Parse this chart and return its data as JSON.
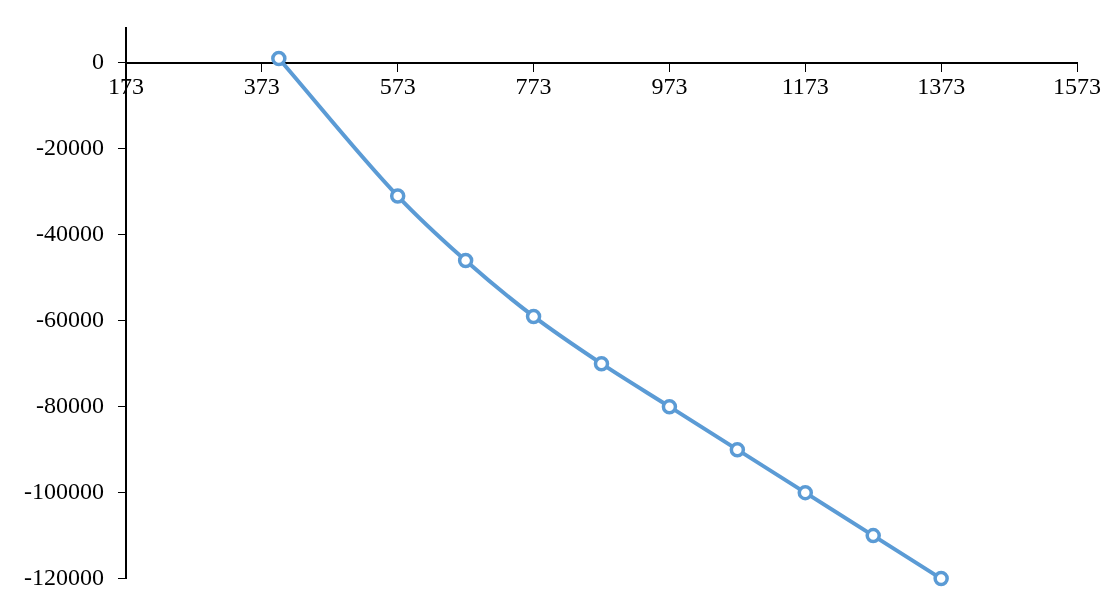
{
  "chart_data": {
    "type": "line",
    "x": [
      398,
      573,
      673,
      773,
      873,
      973,
      1073,
      1173,
      1273,
      1373
    ],
    "series": [
      {
        "color": "#5b9bd5",
        "values": [
          1000,
          -31000,
          -46000,
          -59000,
          -70000,
          -80000,
          -90000,
          -100000,
          -110000,
          -120000
        ]
      }
    ],
    "xlim": [
      173,
      1573
    ],
    "xticks": [
      173,
      373,
      573,
      773,
      973,
      1173,
      1373,
      1573
    ],
    "ylim": [
      -120000,
      8000
    ],
    "yticks": [
      -120000,
      -100000,
      -80000,
      -60000,
      -40000,
      -20000,
      0
    ],
    "grid": false,
    "legend": false,
    "marker": "circle",
    "line_style": "solid"
  }
}
